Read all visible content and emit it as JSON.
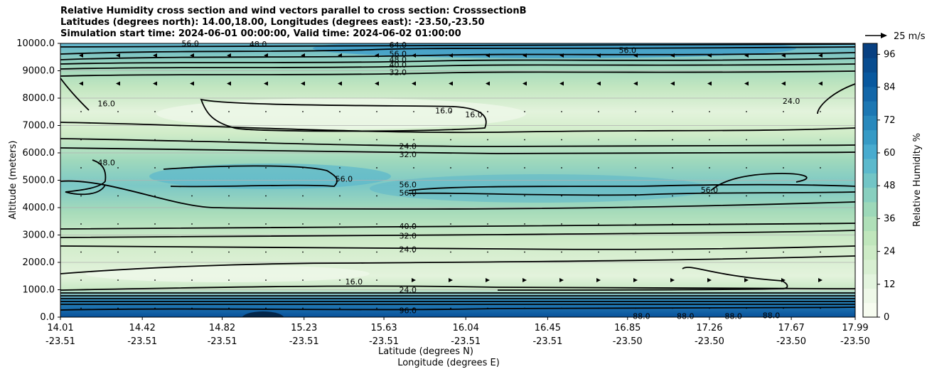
{
  "chart_data": {
    "type": "heatmap",
    "title_lines": [
      "Relative Humidity cross section and wind vectors parallel to cross section: CrosssectionB",
      "Latitudes (degrees north): 14.00,18.00, Longitudes (degrees east): -23.50,-23.50",
      "Simulation start time: 2024-06-01 00:00:00, Valid time: 2024-06-02 01:00:00"
    ],
    "ylabel": "Altitude (meters)",
    "xlabel_lat": "Latitude (degrees N)",
    "xlabel_lon": "Longitude (degrees E)",
    "ylim": [
      0,
      10000
    ],
    "y_ticks": [
      0,
      1000,
      2000,
      3000,
      4000,
      5000,
      6000,
      7000,
      8000,
      9000,
      10000
    ],
    "y_tick_labels": [
      "0.0",
      "1000.0",
      "2000.0",
      "3000.0",
      "4000.0",
      "5000.0",
      "6000.0",
      "7000.0",
      "8000.0",
      "9000.0",
      "10000.0"
    ],
    "x_ticks": [
      {
        "lat": "14.01",
        "lon": "-23.51"
      },
      {
        "lat": "14.42",
        "lon": "-23.51"
      },
      {
        "lat": "14.82",
        "lon": "-23.51"
      },
      {
        "lat": "15.23",
        "lon": "-23.51"
      },
      {
        "lat": "15.63",
        "lon": "-23.51"
      },
      {
        "lat": "16.04",
        "lon": "-23.51"
      },
      {
        "lat": "16.45",
        "lon": "-23.51"
      },
      {
        "lat": "16.85",
        "lon": "-23.50"
      },
      {
        "lat": "17.26",
        "lon": "-23.50"
      },
      {
        "lat": "17.67",
        "lon": "-23.50"
      },
      {
        "lat": "17.99",
        "lon": "-23.50"
      }
    ],
    "x_range": [
      14.01,
      17.99
    ],
    "colorbar": {
      "label": "Relative Humidity %",
      "range": [
        0,
        100
      ],
      "ticks": [
        "0",
        "12",
        "24",
        "36",
        "48",
        "60",
        "72",
        "84",
        "96"
      ],
      "tick_values": [
        0,
        12,
        24,
        36,
        48,
        60,
        72,
        84,
        96
      ],
      "colors": [
        "#f7fcf0",
        "#eef8e8",
        "#e3f4de",
        "#d8efd2",
        "#cdebc6",
        "#c0e6bc",
        "#afdfb8",
        "#9dd8b9",
        "#88cfbf",
        "#72c5c6",
        "#5cb9cc",
        "#48abcf",
        "#369ac5",
        "#2888bc",
        "#1c77b3",
        "#1266a8",
        "#08589e",
        "#084c8f",
        "#084081"
      ]
    },
    "contour_levels": [
      16,
      24,
      32,
      40,
      48,
      56,
      64,
      72,
      80,
      88,
      96
    ],
    "contour_labels": [
      {
        "text": "64.0",
        "lat": 15.7,
        "alt": 9950
      },
      {
        "text": "56.0",
        "lat": 15.7,
        "alt": 9620
      },
      {
        "text": "48.0",
        "lat": 15.7,
        "alt": 9420
      },
      {
        "text": "40.0",
        "lat": 15.7,
        "alt": 9220
      },
      {
        "text": "32.0",
        "lat": 15.7,
        "alt": 8950
      },
      {
        "text": "48.0",
        "lat": 15.0,
        "alt": 9980
      },
      {
        "text": "56.0",
        "lat": 14.66,
        "alt": 10000
      },
      {
        "text": "56.0",
        "lat": 16.85,
        "alt": 9750
      },
      {
        "text": "16.0",
        "lat": 14.24,
        "alt": 7800
      },
      {
        "text": "16.0",
        "lat": 15.93,
        "alt": 7550
      },
      {
        "text": "16.0",
        "lat": 16.08,
        "alt": 7400
      },
      {
        "text": "24.0",
        "lat": 17.67,
        "alt": 7900
      },
      {
        "text": "24.0",
        "lat": 15.75,
        "alt": 6250
      },
      {
        "text": "32.0",
        "lat": 15.75,
        "alt": 5950
      },
      {
        "text": "48.0",
        "lat": 14.24,
        "alt": 5650
      },
      {
        "text": "56.0",
        "lat": 15.43,
        "alt": 5050
      },
      {
        "text": "56.0",
        "lat": 15.75,
        "alt": 4850
      },
      {
        "text": "56.0",
        "lat": 15.75,
        "alt": 4550
      },
      {
        "text": "56.0",
        "lat": 17.26,
        "alt": 4650
      },
      {
        "text": "40.0",
        "lat": 15.75,
        "alt": 3320
      },
      {
        "text": "32.0",
        "lat": 15.75,
        "alt": 2980
      },
      {
        "text": "24.0",
        "lat": 15.75,
        "alt": 2480
      },
      {
        "text": "16.0",
        "lat": 15.48,
        "alt": 1300
      },
      {
        "text": "24.0",
        "lat": 15.75,
        "alt": 1000
      },
      {
        "text": "96.0",
        "lat": 15.75,
        "alt": 250
      },
      {
        "text": "88.0",
        "lat": 16.92,
        "alt": 40
      },
      {
        "text": "88.0",
        "lat": 17.14,
        "alt": 40
      },
      {
        "text": "88.0",
        "lat": 17.38,
        "alt": 40
      },
      {
        "text": "88.0",
        "lat": 17.57,
        "alt": 60
      }
    ],
    "wind_vector_key": "25 m/s",
    "grid": true
  }
}
